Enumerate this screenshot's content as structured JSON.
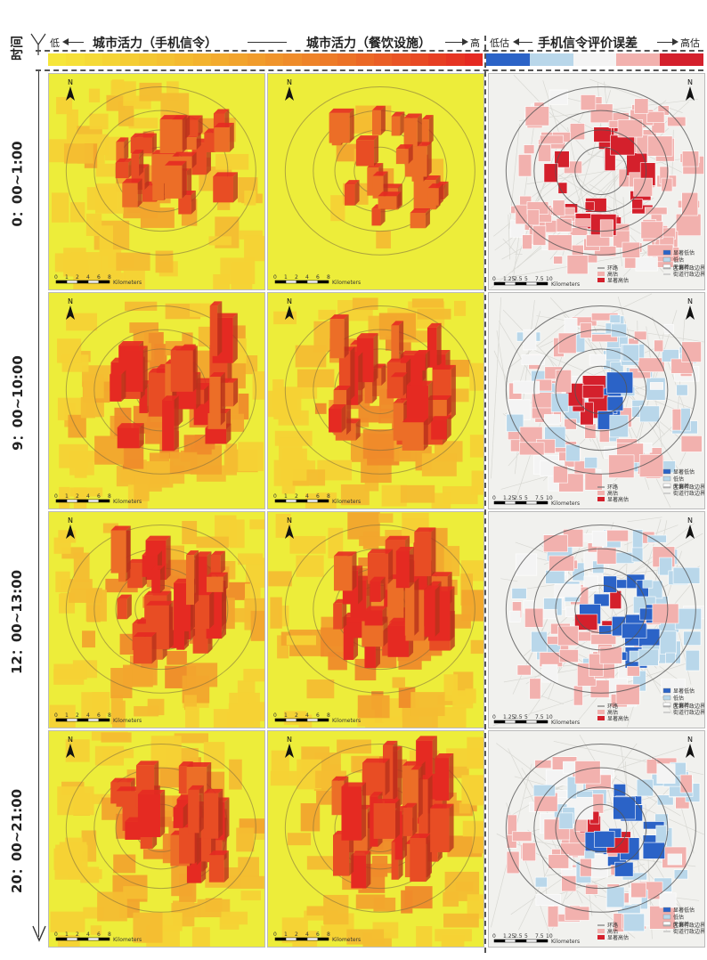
{
  "header": {
    "time_axis_label": "时间",
    "left_low": "低",
    "left_title_phone": "城市活力（手机信令）",
    "left_title_food": "城市活力（餐饮设施）",
    "left_high": "高",
    "right_low": "低估",
    "right_title": "手机信令评价误差",
    "right_high": "高估"
  },
  "rows": [
    {
      "time_label": "0：00~1:00"
    },
    {
      "time_label": "9：00~10:00"
    },
    {
      "time_label": "12：00~13:00"
    },
    {
      "time_label": "20：00~21:00"
    }
  ],
  "map_text": {
    "north": "N",
    "scale_ticks_left": [
      "0",
      "1",
      "2",
      "4",
      "6",
      "8"
    ],
    "scale_unit": "Kilometers",
    "scale_ticks_right": [
      "0",
      "1.25",
      "2.5",
      "5",
      "7.5",
      "10"
    ],
    "legend_items": [
      "显著低估",
      "低估",
      "无偏差",
      "环路",
      "区县行政边界",
      "高估",
      "街道行政边界",
      "显著高估"
    ]
  },
  "colors": {
    "vitality_ramp": [
      "#f6e63a",
      "#f5d235",
      "#f4bd31",
      "#f2a52d",
      "#ef8b2a",
      "#ec6e27",
      "#e84d24",
      "#e52a22"
    ],
    "error_ramp": [
      "#2b63c7",
      "#b9d7ea",
      "#f4f4f4",
      "#f2b1ae",
      "#d4202c"
    ],
    "map_background_left": "#eded3a"
  }
}
